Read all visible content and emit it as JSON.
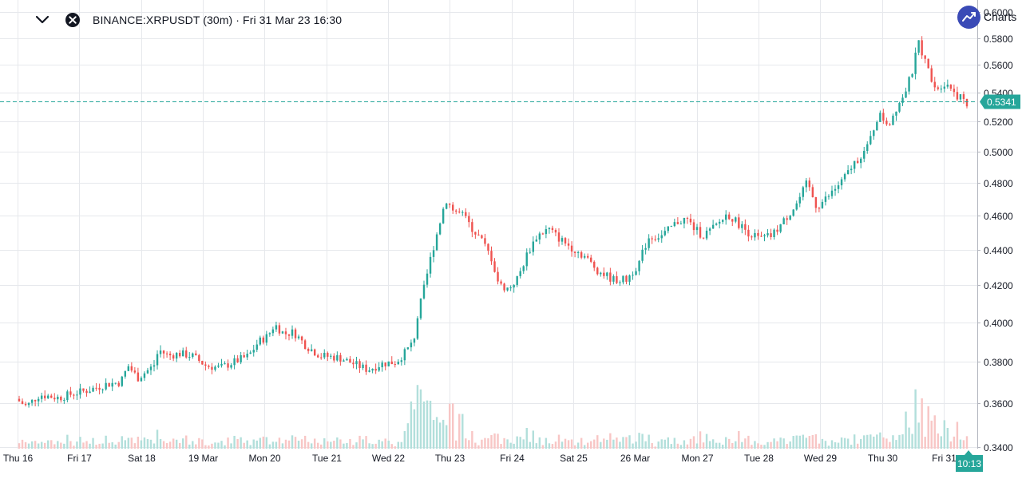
{
  "header": {
    "symbol_title": "BINANCE:XRPUSDT (30m) · Fri 31 Mar 23 16:30",
    "collapse_icon": "chevron-down-icon",
    "close_icon": "close-icon"
  },
  "brand": {
    "name": "Charts",
    "logo_icon": "chart-logo-icon"
  },
  "colors": {
    "up": "#26a69a",
    "down": "#ef5350",
    "vol_up": "#b2dfdb",
    "vol_down": "#f8c6c5",
    "grid": "#e6e8ec",
    "axis_text": "#131722",
    "price_line": "#26a69a",
    "brand": "#3a4ab6"
  },
  "chart_data": {
    "type": "candlestick",
    "title": "BINANCE:XRPUSDT (30m)",
    "x_tick_labels": [
      "Thu 16",
      "Fri 17",
      "Sat 18",
      "19 Mar",
      "Mon 20",
      "Tue 21",
      "Wed 22",
      "Thu 23",
      "Fri 24",
      "Sat 25",
      "26 Mar",
      "Mon 27",
      "Tue 28",
      "Wed 29",
      "Thu 30",
      "Fri 31"
    ],
    "y_tick_labels": [
      "0.6000",
      "0.5800",
      "0.5600",
      "0.5400",
      "0.5200",
      "0.5000",
      "0.4800",
      "0.4600",
      "0.4400",
      "0.4200",
      "0.4000",
      "0.3800",
      "0.3600",
      "0.3400"
    ],
    "y_ticks": [
      0.6,
      0.58,
      0.56,
      0.54,
      0.52,
      0.5,
      0.48,
      0.46,
      0.44,
      0.42,
      0.4,
      0.38,
      0.36,
      0.34
    ],
    "y_scale": "log",
    "ylim": [
      0.3392,
      0.6032
    ],
    "last_price": 0.5341,
    "last_price_label": "0.5341",
    "countdown_label": "10:13",
    "price_path": [
      [
        0.0,
        0.362
      ],
      [
        0.011,
        0.3585
      ],
      [
        0.025,
        0.364
      ],
      [
        0.045,
        0.3625
      ],
      [
        0.06,
        0.3645
      ],
      [
        0.075,
        0.366
      ],
      [
        0.095,
        0.369
      ],
      [
        0.11,
        0.37
      ],
      [
        0.118,
        0.378
      ],
      [
        0.128,
        0.372
      ],
      [
        0.145,
        0.378
      ],
      [
        0.15,
        0.386
      ],
      [
        0.16,
        0.383
      ],
      [
        0.172,
        0.384
      ],
      [
        0.185,
        0.383
      ],
      [
        0.2,
        0.378
      ],
      [
        0.215,
        0.377
      ],
      [
        0.235,
        0.381
      ],
      [
        0.245,
        0.383
      ],
      [
        0.255,
        0.39
      ],
      [
        0.265,
        0.393
      ],
      [
        0.272,
        0.399
      ],
      [
        0.282,
        0.394
      ],
      [
        0.292,
        0.395
      ],
      [
        0.305,
        0.388
      ],
      [
        0.32,
        0.383
      ],
      [
        0.34,
        0.382
      ],
      [
        0.355,
        0.379
      ],
      [
        0.37,
        0.376
      ],
      [
        0.385,
        0.379
      ],
      [
        0.4,
        0.38
      ],
      [
        0.41,
        0.385
      ],
      [
        0.418,
        0.39
      ],
      [
        0.423,
        0.405
      ],
      [
        0.43,
        0.42
      ],
      [
        0.436,
        0.435
      ],
      [
        0.443,
        0.45
      ],
      [
        0.452,
        0.47
      ],
      [
        0.46,
        0.463
      ],
      [
        0.47,
        0.46
      ],
      [
        0.48,
        0.452
      ],
      [
        0.49,
        0.445
      ],
      [
        0.5,
        0.435
      ],
      [
        0.508,
        0.42
      ],
      [
        0.518,
        0.418
      ],
      [
        0.528,
        0.424
      ],
      [
        0.538,
        0.438
      ],
      [
        0.548,
        0.448
      ],
      [
        0.56,
        0.452
      ],
      [
        0.572,
        0.446
      ],
      [
        0.582,
        0.442
      ],
      [
        0.598,
        0.436
      ],
      [
        0.612,
        0.428
      ],
      [
        0.628,
        0.423
      ],
      [
        0.642,
        0.423
      ],
      [
        0.655,
        0.432
      ],
      [
        0.665,
        0.447
      ],
      [
        0.68,
        0.448
      ],
      [
        0.695,
        0.456
      ],
      [
        0.705,
        0.458
      ],
      [
        0.712,
        0.453
      ],
      [
        0.722,
        0.448
      ],
      [
        0.735,
        0.453
      ],
      [
        0.748,
        0.461
      ],
      [
        0.758,
        0.456
      ],
      [
        0.77,
        0.45
      ],
      [
        0.782,
        0.446
      ],
      [
        0.795,
        0.448
      ],
      [
        0.808,
        0.457
      ],
      [
        0.822,
        0.468
      ],
      [
        0.832,
        0.48
      ],
      [
        0.842,
        0.465
      ],
      [
        0.855,
        0.472
      ],
      [
        0.87,
        0.482
      ],
      [
        0.882,
        0.493
      ],
      [
        0.895,
        0.502
      ],
      [
        0.907,
        0.525
      ],
      [
        0.918,
        0.518
      ],
      [
        0.926,
        0.53
      ],
      [
        0.936,
        0.542
      ],
      [
        0.945,
        0.56
      ],
      [
        0.948,
        0.58
      ],
      [
        0.958,
        0.558
      ],
      [
        0.968,
        0.543
      ],
      [
        0.978,
        0.548
      ],
      [
        0.99,
        0.538
      ],
      [
        1.0,
        0.533
      ]
    ]
  }
}
